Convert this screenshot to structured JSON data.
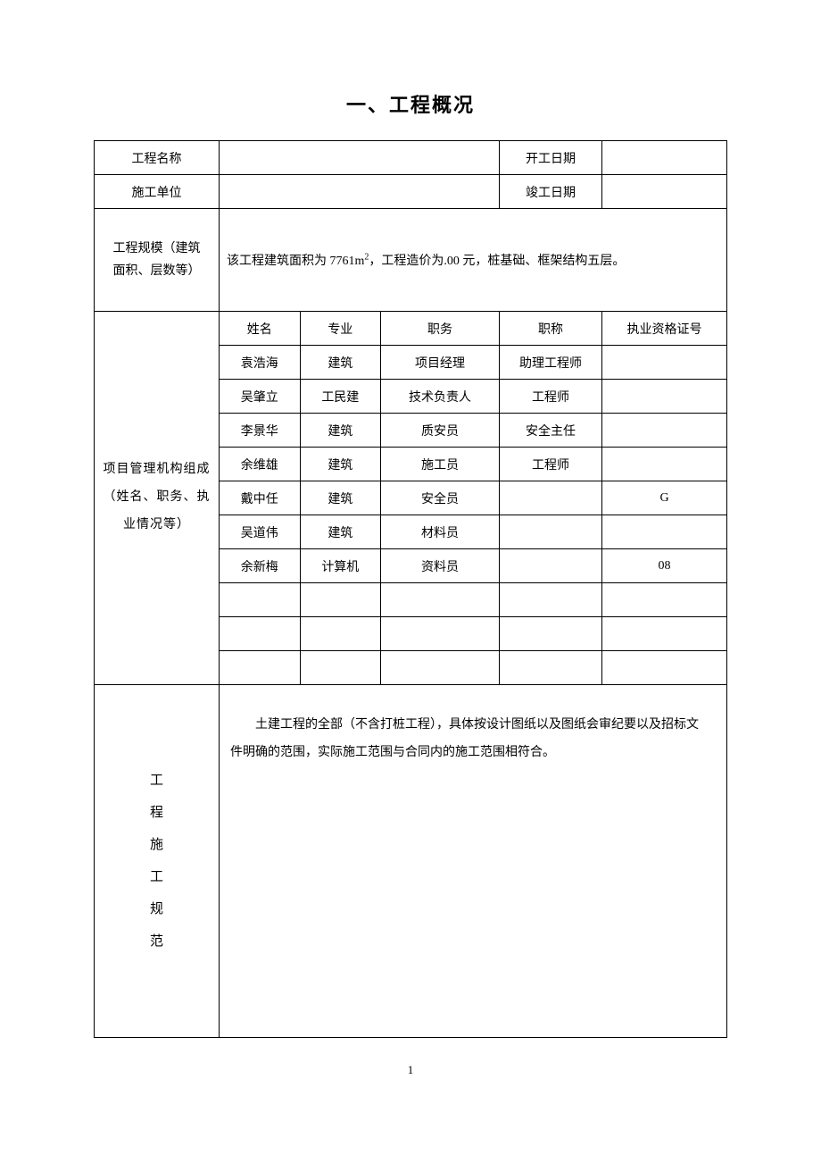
{
  "title": "一、工程概况",
  "header_rows": {
    "project_name_label": "工程名称",
    "project_name_value": "",
    "start_date_label": "开工日期",
    "start_date_value": "",
    "construction_unit_label": "施工单位",
    "construction_unit_value": "",
    "completion_date_label": "竣工日期",
    "completion_date_value": ""
  },
  "scale": {
    "label_line1": "工程规模（建筑",
    "label_line2": "面积、层数等）",
    "content_prefix": "该工程建筑面积为 7761m",
    "content_suffix": "，工程造价为.00 元，桩基础、框架结构五层。"
  },
  "management": {
    "label": "项目管理机构组成（姓名、职务、执业情况等）",
    "columns": {
      "name": "姓名",
      "major": "专业",
      "position": "职务",
      "title": "职称",
      "cert": "执业资格证号"
    },
    "rows": [
      {
        "name": "袁浩海",
        "major": "建筑",
        "position": "项目经理",
        "title": "助理工程师",
        "cert": ""
      },
      {
        "name": "吴肇立",
        "major": "工民建",
        "position": "技术负责人",
        "title": "工程师",
        "cert": ""
      },
      {
        "name": "李景华",
        "major": "建筑",
        "position": "质安员",
        "title": "安全主任",
        "cert": ""
      },
      {
        "name": "余维雄",
        "major": "建筑",
        "position": "施工员",
        "title": "工程师",
        "cert": ""
      },
      {
        "name": "戴中任",
        "major": "建筑",
        "position": "安全员",
        "title": "",
        "cert": "G"
      },
      {
        "name": "吴道伟",
        "major": "建筑",
        "position": "材料员",
        "title": "",
        "cert": ""
      },
      {
        "name": "余新梅",
        "major": "计算机",
        "position": "资料员",
        "title": "",
        "cert": "08"
      },
      {
        "name": "",
        "major": "",
        "position": "",
        "title": "",
        "cert": ""
      },
      {
        "name": "",
        "major": "",
        "position": "",
        "title": "",
        "cert": ""
      },
      {
        "name": "",
        "major": "",
        "position": "",
        "title": "",
        "cert": ""
      }
    ]
  },
  "scope": {
    "label_chars": [
      "工",
      "程",
      "施",
      "工",
      "规",
      "范"
    ],
    "content": "土建工程的全部（不含打桩工程），具体按设计图纸以及图纸会审纪要以及招标文件明确的范围，实际施工范围与合同内的施工范围相符合。"
  },
  "page_number": "1"
}
